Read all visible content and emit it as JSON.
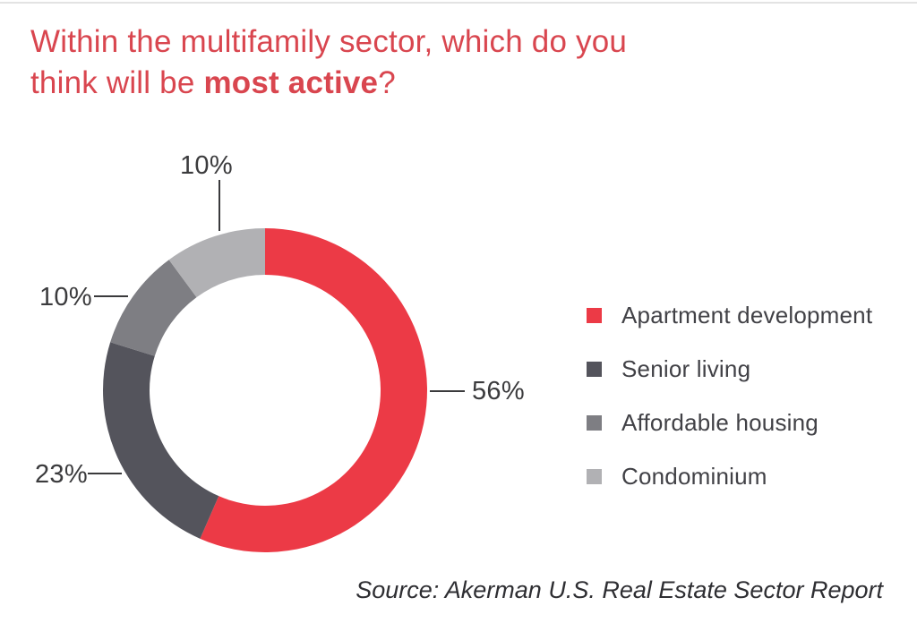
{
  "title": {
    "line1": "Within the multifamily sector, which do you",
    "line2_prefix": "think will be ",
    "line2_bold": "most active",
    "line2_suffix": "?"
  },
  "source": "Source: Akerman U.S. Real Estate Sector Report",
  "chart_data": {
    "type": "pie",
    "subtype": "donut",
    "title": "Within the multifamily sector, which do you think will be most active?",
    "series": [
      {
        "name": "Apartment development",
        "value": 56,
        "label": "56%",
        "color": "#ec3a46"
      },
      {
        "name": "Senior living",
        "value": 23,
        "label": "23%",
        "color": "#54545c"
      },
      {
        "name": "Affordable housing",
        "value": 10,
        "label": "10%",
        "color": "#7e7e83"
      },
      {
        "name": "Condominium",
        "value": 10,
        "label": "10%",
        "color": "#b1b1b4"
      }
    ],
    "start_angle_deg": 0,
    "direction": "clockwise",
    "inner_radius_ratio": 0.712,
    "legend_position": "right",
    "labels_outside": true
  }
}
